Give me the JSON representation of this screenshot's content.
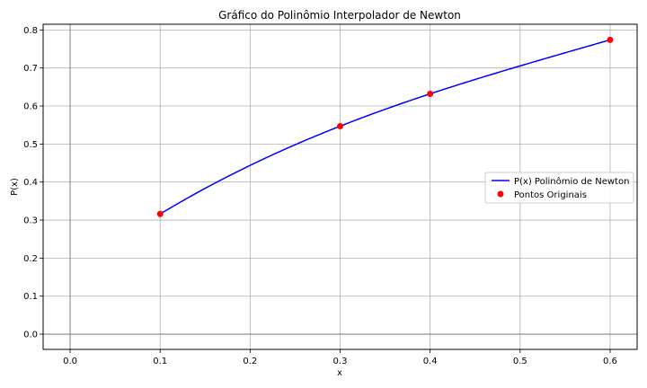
{
  "chart_data": {
    "type": "line",
    "title": "Gráfico do Polinômio Interpolador de Newton",
    "xlabel": "x",
    "ylabel": "P(x)",
    "xlim": [
      -0.03,
      0.63
    ],
    "ylim": [
      -0.04,
      0.815
    ],
    "x_ticks": [
      "0.0",
      "0.1",
      "0.2",
      "0.3",
      "0.4",
      "0.5",
      "0.6"
    ],
    "x_tick_values": [
      0.0,
      0.1,
      0.2,
      0.3,
      0.4,
      0.5,
      0.6
    ],
    "y_ticks": [
      "0.0",
      "0.1",
      "0.2",
      "0.3",
      "0.4",
      "0.5",
      "0.6",
      "0.7",
      "0.8"
    ],
    "y_tick_values": [
      0.0,
      0.1,
      0.2,
      0.3,
      0.4,
      0.5,
      0.6,
      0.7,
      0.8
    ],
    "grid": true,
    "legend_position": "center-right",
    "series": [
      {
        "name": "P(x) Polinômio de Newton",
        "kind": "line",
        "color": "#0000ff",
        "x": [
          0.1,
          0.6
        ],
        "polynomial_points": [
          [
            0.1,
            0.316
          ],
          [
            0.3,
            0.547
          ],
          [
            0.4,
            0.632
          ],
          [
            0.6,
            0.774
          ]
        ]
      },
      {
        "name": "Pontos Originais",
        "kind": "scatter",
        "color": "#ff0000",
        "x": [
          0.1,
          0.3,
          0.4,
          0.6
        ],
        "y": [
          0.316,
          0.547,
          0.632,
          0.774
        ]
      }
    ]
  }
}
